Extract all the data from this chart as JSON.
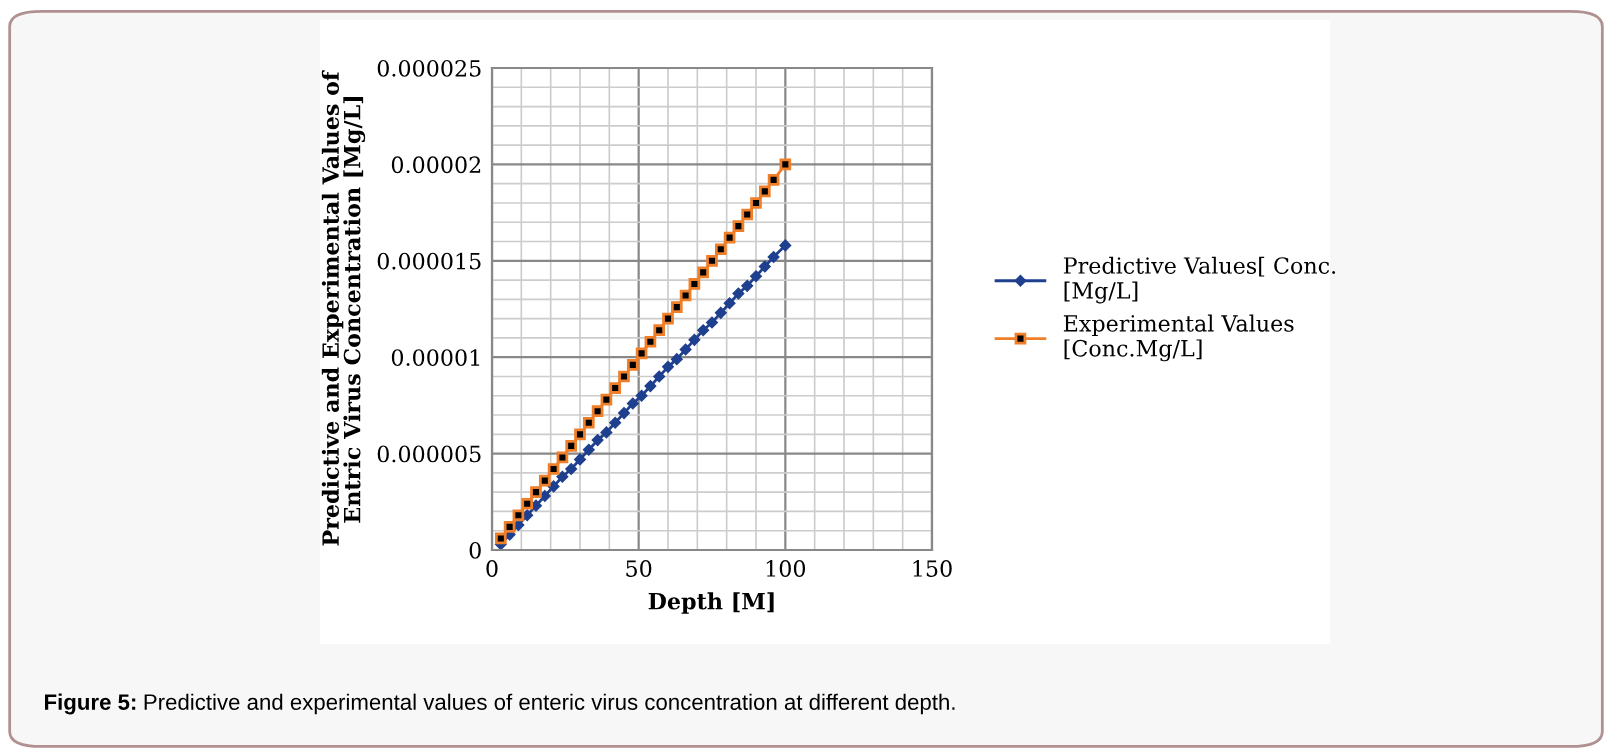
{
  "chart_data": {
    "type": "line",
    "xlabel": "Depth [M]",
    "ylabel": "Predictive and Experimental Values of\nEntric Virus Concentration [Mg/L]",
    "x": [
      3,
      6,
      9,
      12,
      15,
      18,
      21,
      24,
      27,
      30,
      33,
      36,
      39,
      42,
      45,
      48,
      51,
      54,
      57,
      60,
      63,
      66,
      69,
      72,
      75,
      78,
      81,
      84,
      87,
      90,
      93,
      96,
      100
    ],
    "series": [
      {
        "name": "Predictive Values[ Conc.\n[Mg/L]",
        "color": "#1f3f8f",
        "marker": "diamond",
        "values": [
          3e-07,
          8e-07,
          1.3e-06,
          1.8e-06,
          2.3e-06,
          2.8e-06,
          3.3e-06,
          3.8e-06,
          4.2e-06,
          4.7e-06,
          5.2e-06,
          5.7e-06,
          6.1e-06,
          6.6e-06,
          7.1e-06,
          7.6e-06,
          8e-06,
          8.5e-06,
          9e-06,
          9.5e-06,
          9.9e-06,
          1.04e-05,
          1.09e-05,
          1.14e-05,
          1.18e-05,
          1.23e-05,
          1.28e-05,
          1.33e-05,
          1.37e-05,
          1.42e-05,
          1.47e-05,
          1.52e-05,
          1.58e-05
        ]
      },
      {
        "name": "Experimental Values\n[Conc.Mg/L]",
        "color": "#f07f2a",
        "marker": "square",
        "values": [
          6e-07,
          1.2e-06,
          1.8e-06,
          2.4e-06,
          3e-06,
          3.6e-06,
          4.2e-06,
          4.8e-06,
          5.4e-06,
          6e-06,
          6.6e-06,
          7.2e-06,
          7.8e-06,
          8.4e-06,
          9e-06,
          9.6e-06,
          1.02e-05,
          1.08e-05,
          1.14e-05,
          1.2e-05,
          1.26e-05,
          1.32e-05,
          1.38e-05,
          1.44e-05,
          1.5e-05,
          1.56e-05,
          1.62e-05,
          1.68e-05,
          1.74e-05,
          1.8e-05,
          1.86e-05,
          1.92e-05,
          2e-05
        ]
      }
    ],
    "xlim": [
      0,
      150
    ],
    "xticks": [
      0,
      50,
      100,
      150
    ],
    "ylim": [
      0,
      2.5e-05
    ],
    "yticks": [
      {
        "value": 0,
        "label": "0"
      },
      {
        "value": 5e-06,
        "label": "0.000005"
      },
      {
        "value": 1e-05,
        "label": "0.00001"
      },
      {
        "value": 1.5e-05,
        "label": "0.000015"
      },
      {
        "value": 2e-05,
        "label": "0.00002"
      },
      {
        "value": 2.5e-05,
        "label": "0.000025"
      }
    ],
    "grid": true,
    "legend": "right",
    "line_style": "solid",
    "annotations": [
      "Figure 5: Predictive and experimental values of enteric virus concentration at different depth."
    ]
  }
}
